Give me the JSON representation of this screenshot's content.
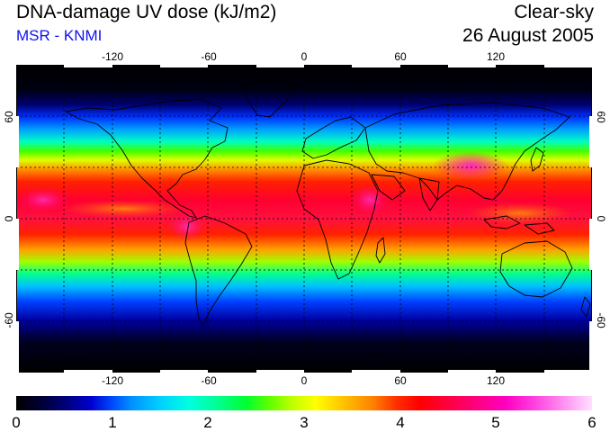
{
  "header": {
    "title": "DNA-damage UV dose (kJ/m2)",
    "subtitle": "MSR - KNMI",
    "sky": "Clear-sky",
    "date": "26 August 2005"
  },
  "map": {
    "lon_ticks": [
      "-120",
      "-60",
      "0",
      "60",
      "120"
    ],
    "lat_ticks": [
      "60",
      "0",
      "-60"
    ]
  },
  "colorbar": {
    "ticks": [
      "0",
      "1",
      "2",
      "3",
      "4",
      "5",
      "6"
    ]
  }
}
